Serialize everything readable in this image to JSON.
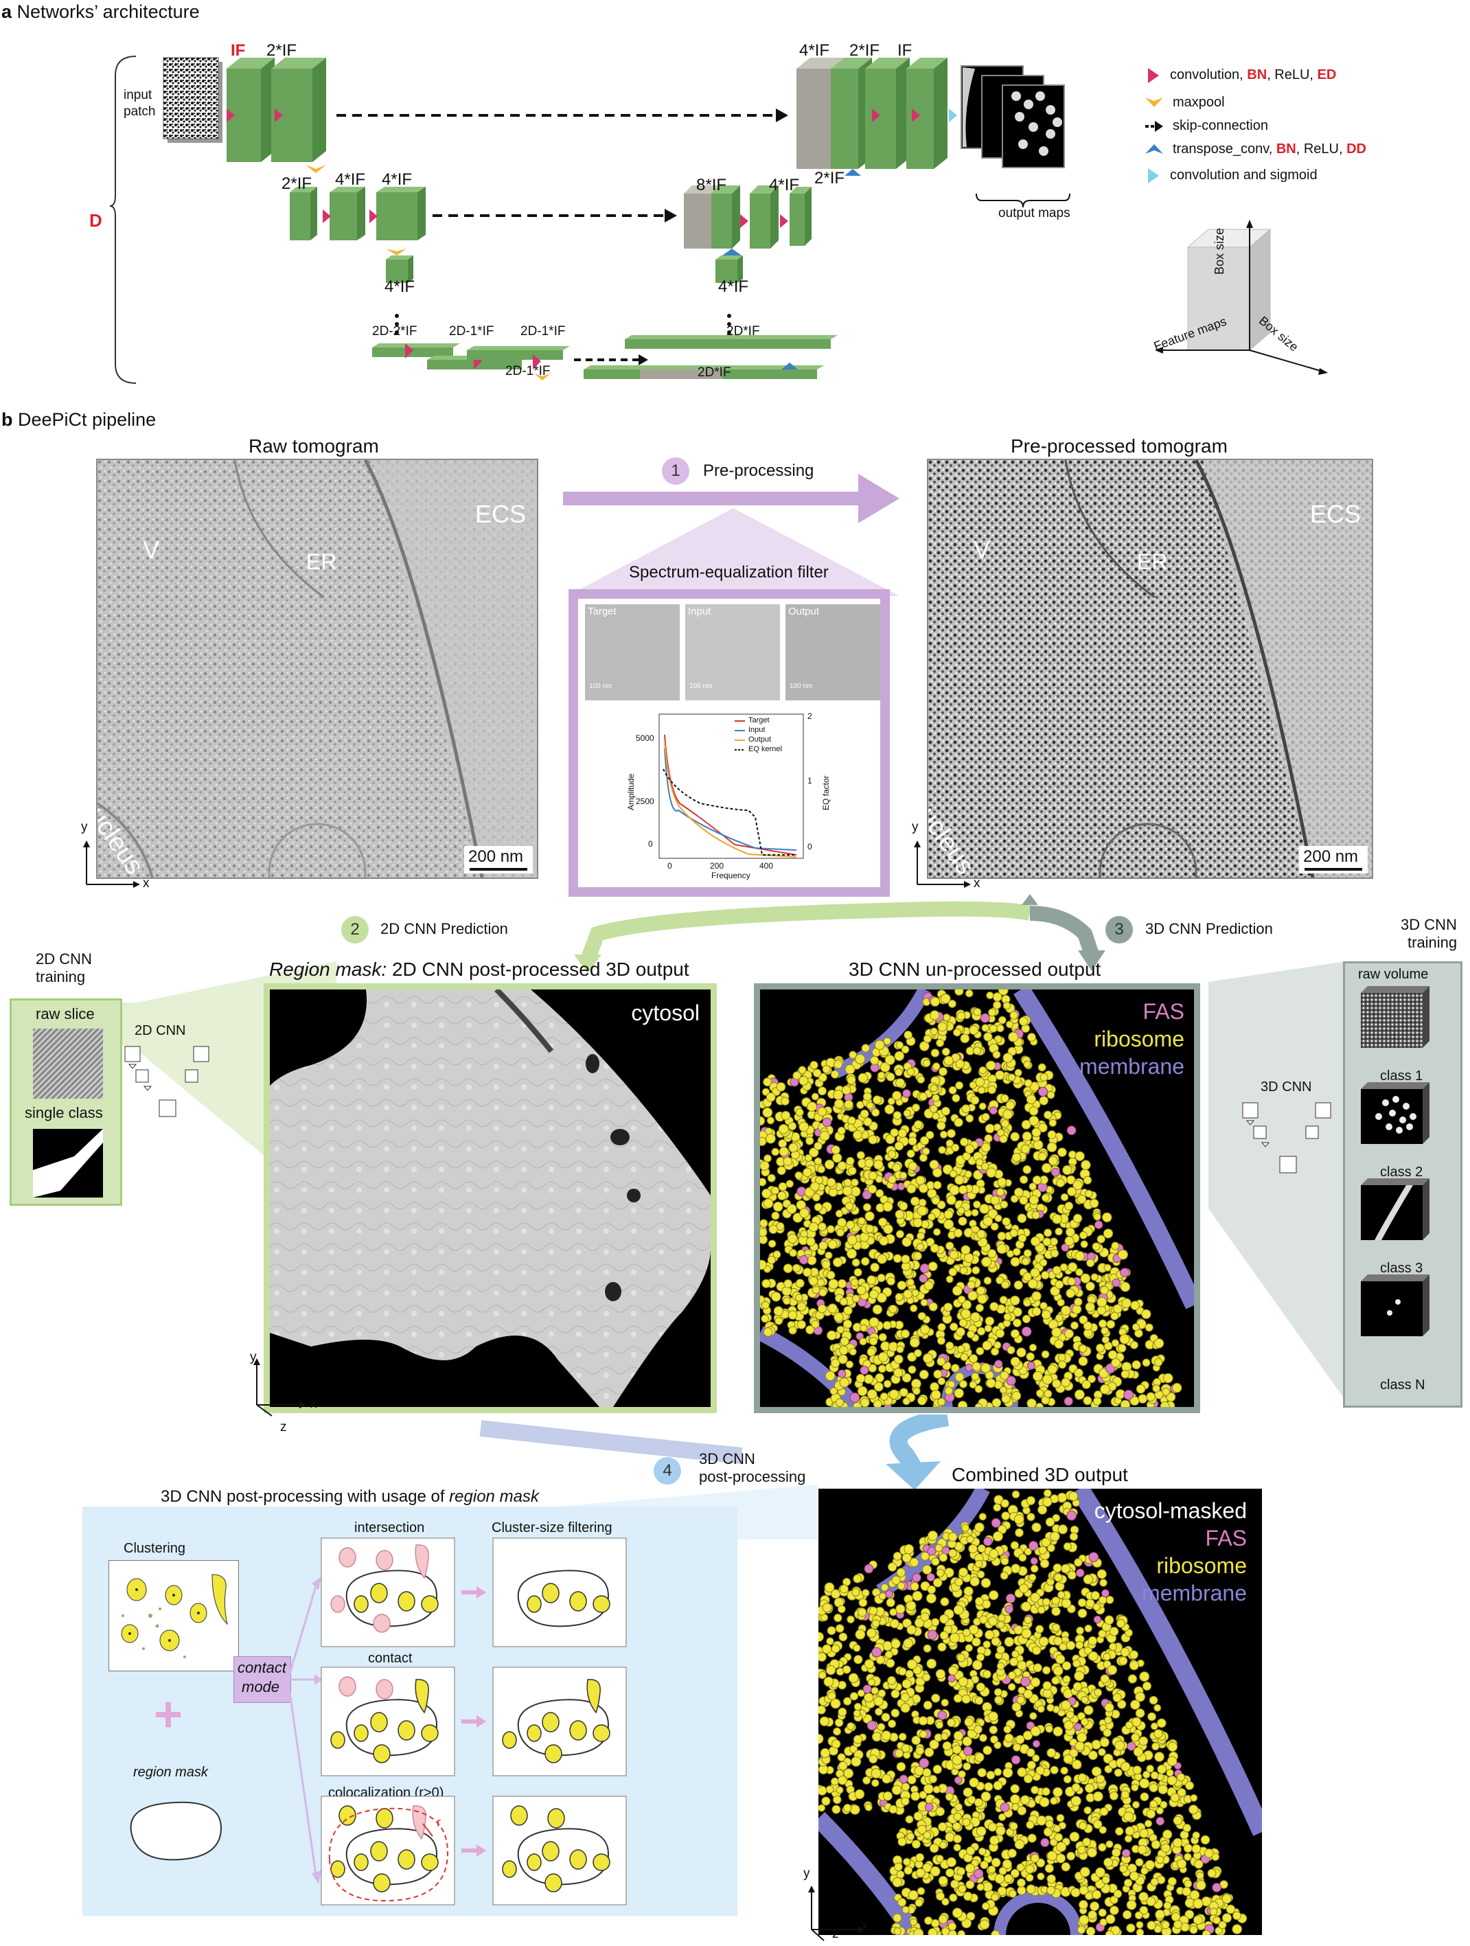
{
  "section_a": {
    "letter": "a",
    "title": "Networks’ architecture"
  },
  "arch": {
    "input_patch": [
      "input",
      "patch"
    ],
    "depth_label": "D",
    "level0_left": [
      "IF",
      "2*IF"
    ],
    "level0_right": [
      "4*IF",
      "2*IF",
      "IF"
    ],
    "level1_left": [
      "2*IF",
      "4*IF",
      "4*IF"
    ],
    "level1_right": [
      "8*IF",
      "4*IF",
      "2*IF"
    ],
    "level2_left": "4*IF",
    "level2_right": "4*IF",
    "bottom_left": [
      "2D-2*IF",
      "2D-1*IF",
      "2D-1*IF",
      "2D-1*IF"
    ],
    "bottom_right": [
      "2D*IF",
      "2D*IF"
    ],
    "output_maps": "output maps",
    "colors": {
      "block": "#6aa35a",
      "grey_block": "#a5a399",
      "conv": "#d6336c",
      "maxpool": "#f2b632",
      "transpose": "#3b7fc4",
      "sigmoid": "#7fd3e6"
    }
  },
  "legend": {
    "conv_prefix": "convolution, ",
    "conv_bn": "BN",
    "conv_relu": ", ReLU, ",
    "conv_ed": "ED",
    "maxpool": "maxpool",
    "skip": "skip-connection",
    "trans_prefix": "transpose_conv, ",
    "trans_bn": "BN",
    "trans_relu": ", ReLU, ",
    "trans_dd": "DD",
    "sigmoid": "convolution and sigmoid"
  },
  "cube_axes": {
    "box_size_v": "Box size",
    "feature_maps": "Feature maps",
    "box_size_d": "Box size"
  },
  "section_b": {
    "letter": "b",
    "title": "DeePiCt pipeline"
  },
  "raw": {
    "title": "Raw tomogram",
    "ecs": "ECS",
    "v": "V",
    "er": "ER",
    "nucleus": "nucleus",
    "scale": "200 nm",
    "y": "y",
    "x": "x"
  },
  "pre": {
    "title": "Pre-processed tomogram",
    "ecs": "ECS",
    "v": "V",
    "er": "ER",
    "nucleus": "nucleus",
    "scale": "200 nm",
    "y": "y",
    "x": "x"
  },
  "step1": {
    "num": "1",
    "label": "Pre-processing"
  },
  "filter": {
    "title": "Spectrum-equalization filter",
    "thumbs": [
      "Target",
      "Input",
      "Output"
    ],
    "thumb_scale": "100 nm",
    "chart": {
      "xlabel": "Frequency",
      "ylabel": "Amplitude",
      "y2label": "EQ factor",
      "yticks": [
        "0",
        "2500",
        "5000"
      ],
      "xticks": [
        "0",
        "200",
        "400"
      ],
      "y2ticks": [
        "0",
        "1",
        "2"
      ],
      "legend": [
        "Target",
        "Input",
        "Output",
        "EQ kernel"
      ]
    }
  },
  "step2": {
    "num": "2",
    "label": "2D CNN Prediction"
  },
  "step3": {
    "num": "3",
    "label": "3D CNN Prediction"
  },
  "step4": {
    "num": "4",
    "label": [
      "3D CNN",
      "post-processing"
    ]
  },
  "train2d": {
    "title": [
      "2D CNN",
      "training"
    ],
    "raw": "raw slice",
    "single": "single class",
    "cnn": "2D CNN"
  },
  "train3d": {
    "title": [
      "3D CNN",
      "training"
    ],
    "raw": "raw volume",
    "cnn": "3D CNN",
    "classes": [
      "class 1",
      "class 2",
      "class 3",
      "class N"
    ]
  },
  "region": {
    "title_italic": "Region mask:",
    "title_rest": " 2D CNN post-processed 3D output",
    "label": "cytosol",
    "y": "y",
    "x": "x",
    "z": "z"
  },
  "unproc": {
    "title": "3D CNN un-processed output",
    "fas": "FAS",
    "ribosome": "ribosome",
    "membrane": "membrane"
  },
  "post": {
    "title_prefix": "3D CNN post-processing with usage of ",
    "title_italic": "region mask",
    "clustering": "Clustering",
    "region_mask": "region mask",
    "contact_mode": [
      "contact",
      "mode"
    ],
    "intersection": "intersection",
    "contact": "contact",
    "coloc": "colocalization (r>0)",
    "cluster_filter": "Cluster-size filtering",
    "plus": "+",
    "r": "r"
  },
  "combined": {
    "title": "Combined 3D output",
    "cytosol": "cytosol-masked",
    "fas": "FAS",
    "ribosome": "ribosome",
    "membrane": "membrane",
    "y": "y",
    "x": "x",
    "z": "z"
  },
  "colors": {
    "fas": "#d97fc0",
    "ribosome": "#f0e63c",
    "membrane": "#8a85d8",
    "green_panel": "#d3e6b8",
    "green_border": "#a7cc7e",
    "grey_panel": "#c9d3cd",
    "grey_border": "#8fa39a",
    "purple": "#c8a8d8",
    "blue_panel": "#dbeef9"
  }
}
